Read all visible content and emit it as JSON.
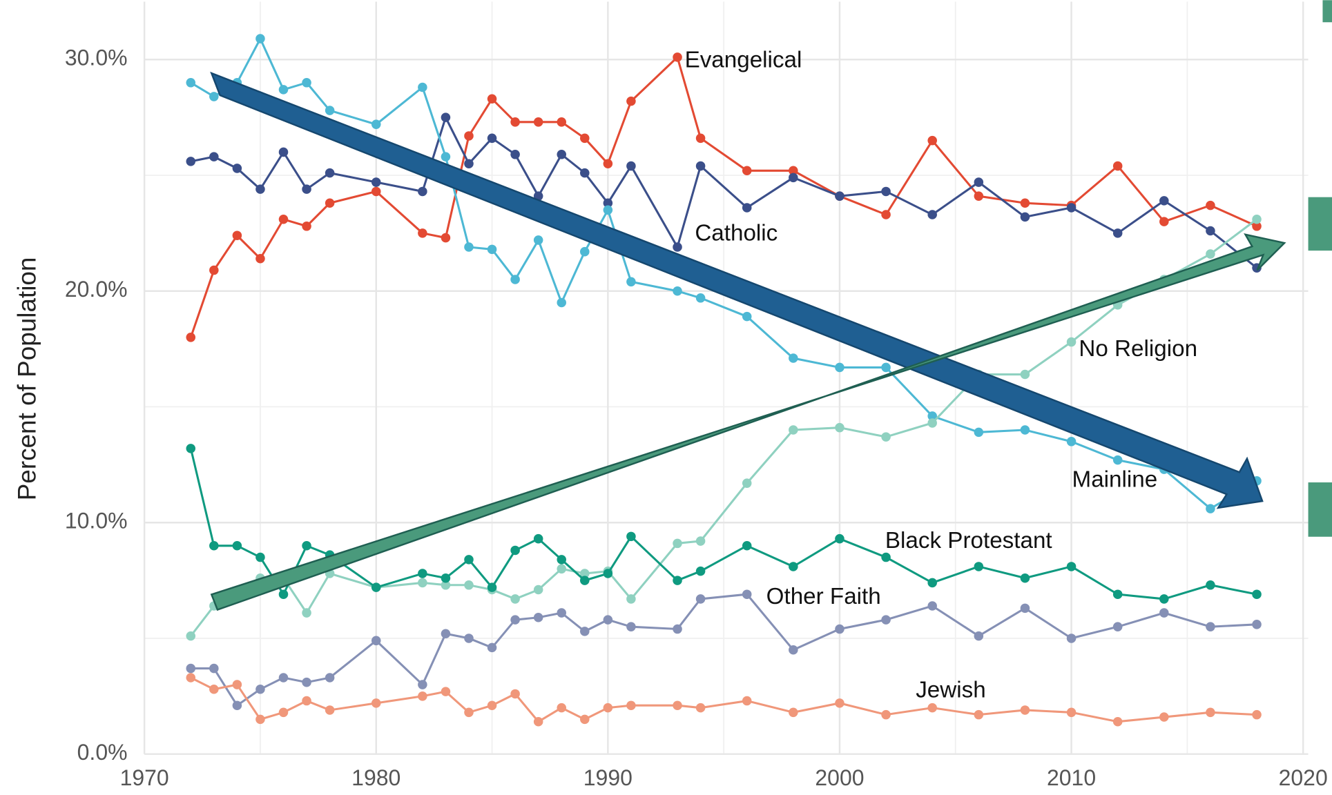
{
  "chart_data": {
    "type": "line",
    "y_label": "Percent of Population",
    "x": [
      1972,
      1973,
      1974,
      1975,
      1976,
      1977,
      1978,
      1980,
      1982,
      1983,
      1984,
      1985,
      1986,
      1987,
      1988,
      1989,
      1990,
      1991,
      1993,
      1994,
      1996,
      1998,
      2000,
      2002,
      2004,
      2006,
      2008,
      2010,
      2012,
      2014,
      2016,
      2018
    ],
    "series": [
      {
        "name": "Evangelical",
        "color": "#e34a33",
        "values": [
          18.0,
          20.9,
          22.4,
          21.4,
          23.1,
          22.8,
          23.8,
          24.3,
          22.5,
          22.3,
          26.7,
          28.3,
          27.3,
          27.3,
          27.3,
          26.6,
          25.5,
          28.2,
          30.1,
          26.6,
          25.2,
          25.2,
          24.1,
          23.3,
          26.5,
          24.1,
          23.8,
          23.7,
          25.4,
          23.0,
          23.7,
          22.8
        ]
      },
      {
        "name": "Catholic",
        "color": "#3b4f8a",
        "values": [
          25.6,
          25.8,
          25.3,
          24.4,
          26.0,
          24.4,
          25.1,
          24.7,
          24.3,
          27.5,
          25.5,
          26.6,
          25.9,
          24.1,
          25.9,
          25.1,
          23.8,
          25.4,
          21.9,
          25.4,
          23.6,
          24.9,
          24.1,
          24.3,
          23.3,
          24.7,
          23.2,
          23.6,
          22.5,
          23.9,
          22.6,
          21.0
        ]
      },
      {
        "name": "Mainline",
        "color": "#4db8d4",
        "values": [
          29.0,
          28.4,
          29.0,
          30.9,
          28.7,
          29.0,
          27.8,
          27.2,
          28.8,
          25.8,
          21.9,
          21.8,
          20.5,
          22.2,
          19.5,
          21.7,
          23.5,
          20.4,
          20.0,
          19.7,
          18.9,
          17.1,
          16.7,
          16.7,
          14.6,
          13.9,
          14.0,
          13.5,
          12.7,
          12.3,
          10.6,
          11.8
        ]
      },
      {
        "name": "No Religion",
        "color": "#8fd1c0",
        "values": [
          5.1,
          6.4,
          6.9,
          7.6,
          7.6,
          6.1,
          7.8,
          7.2,
          7.4,
          7.3,
          7.3,
          7.1,
          6.7,
          7.1,
          8.0,
          7.8,
          7.9,
          6.7,
          9.1,
          9.2,
          11.7,
          14.0,
          14.1,
          13.7,
          14.3,
          16.4,
          16.4,
          17.8,
          19.4,
          20.5,
          21.6,
          23.1
        ]
      },
      {
        "name": "Black Protestant",
        "color": "#0f9a80",
        "values": [
          13.2,
          9.0,
          9.0,
          8.5,
          6.9,
          9.0,
          8.6,
          7.2,
          7.8,
          7.6,
          8.4,
          7.2,
          8.8,
          9.3,
          8.4,
          7.5,
          7.8,
          9.4,
          7.5,
          7.9,
          9.0,
          8.1,
          9.3,
          8.5,
          7.4,
          8.1,
          7.6,
          8.1,
          6.9,
          6.7,
          7.3,
          6.9
        ]
      },
      {
        "name": "Other Faith",
        "color": "#8590b5",
        "values": [
          3.7,
          3.7,
          2.1,
          2.8,
          3.3,
          3.1,
          3.3,
          4.9,
          3.0,
          5.2,
          5.0,
          4.6,
          5.8,
          5.9,
          6.1,
          5.3,
          5.8,
          5.5,
          5.4,
          6.7,
          6.9,
          4.5,
          5.4,
          5.8,
          6.4,
          5.1,
          6.3,
          5.0,
          5.5,
          6.1,
          5.5,
          5.6
        ]
      },
      {
        "name": "Jewish",
        "color": "#f0977a",
        "values": [
          3.3,
          2.8,
          3.0,
          1.5,
          1.8,
          2.3,
          1.9,
          2.2,
          2.5,
          2.7,
          1.8,
          2.1,
          2.6,
          1.4,
          2.0,
          1.5,
          2.0,
          2.1,
          2.1,
          2.0,
          2.3,
          1.8,
          2.2,
          1.7,
          2.0,
          1.7,
          1.9,
          1.8,
          1.4,
          1.6,
          1.8,
          1.7
        ]
      }
    ],
    "xlim": [
      1970,
      2020
    ],
    "xticks": [
      1970,
      1980,
      1990,
      2000,
      2010,
      2020
    ],
    "xticks_minor": [
      1975,
      1985,
      1995,
      2005,
      2015
    ],
    "ylim": [
      0,
      32.5
    ],
    "yticks": [
      {
        "value": 0,
        "label": "0.0%"
      },
      {
        "value": 10,
        "label": "10.0%"
      },
      {
        "value": 20,
        "label": "20.0%"
      },
      {
        "value": 30,
        "label": "30.0%"
      }
    ],
    "yticks_minor": [
      5,
      15,
      25
    ],
    "grid": true
  }
}
